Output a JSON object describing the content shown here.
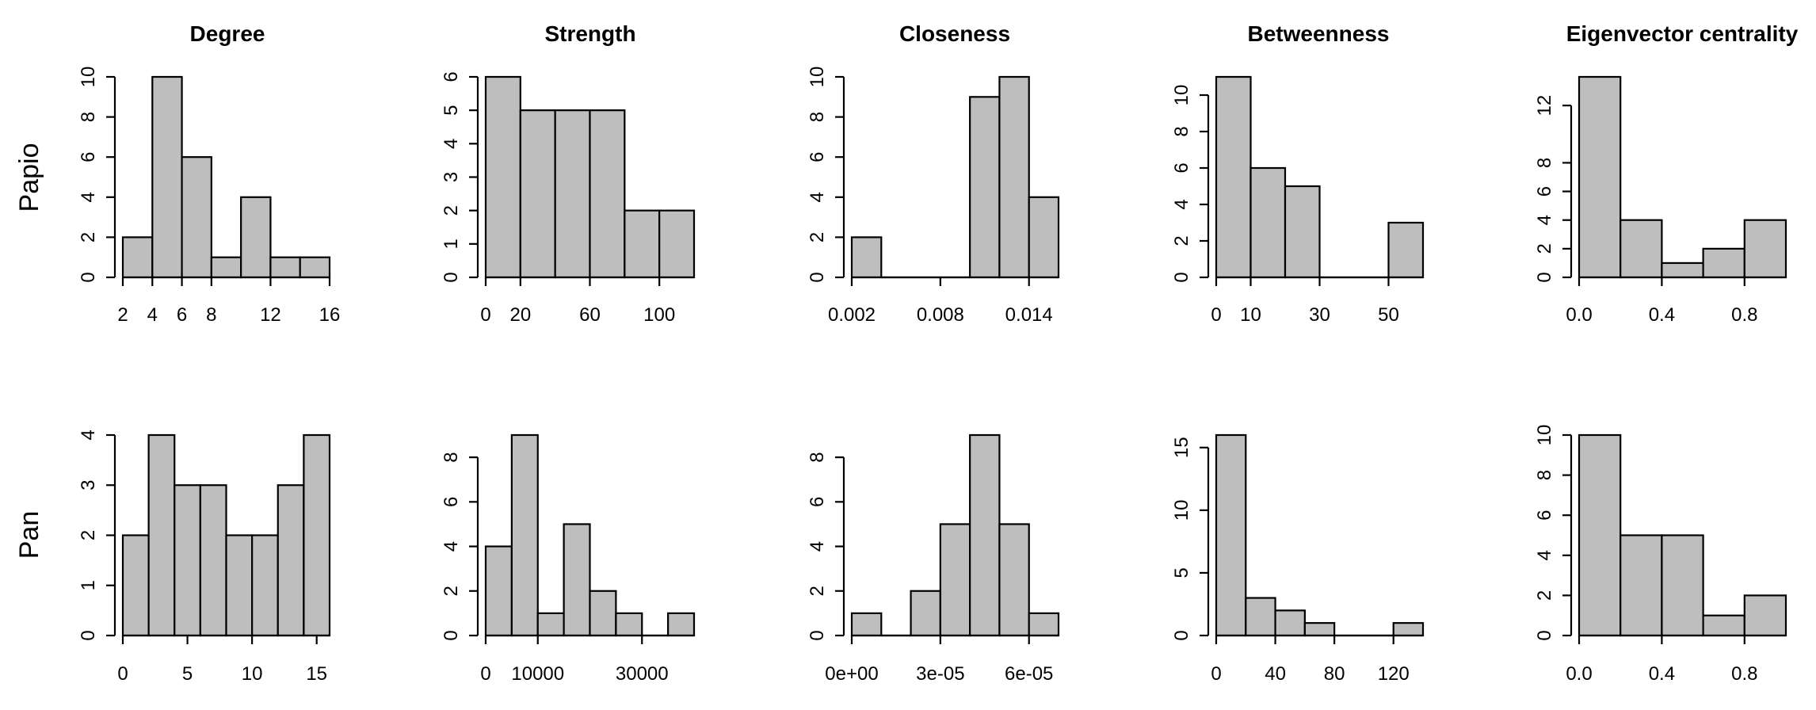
{
  "figure": {
    "column_titles": [
      "Degree",
      "Strength",
      "Closeness",
      "Betweenness",
      "Eigenvector centrality"
    ],
    "row_labels": [
      "Papio",
      "Pan"
    ]
  },
  "style": {
    "bar_fill": "#bebebe",
    "bar_stroke": "#000000",
    "axis_color": "#000000"
  },
  "chart_data": [
    {
      "type": "bar",
      "row": 0,
      "col": 0,
      "title": "Degree",
      "row_label": "Papio",
      "breaks": [
        2,
        4,
        6,
        8,
        10,
        12,
        14,
        16
      ],
      "values": [
        2,
        10,
        6,
        1,
        4,
        1,
        1
      ],
      "xlim": [
        2,
        16
      ],
      "ylim": [
        0,
        10
      ],
      "xticks": [
        2,
        4,
        6,
        8,
        12,
        16
      ],
      "xtick_labels": [
        "2",
        "4",
        "6",
        "8",
        "12",
        "16"
      ],
      "yticks": [
        0,
        2,
        4,
        6,
        8,
        10
      ],
      "ytick_labels": [
        "0",
        "2",
        "4",
        "6",
        "8",
        "10"
      ]
    },
    {
      "type": "bar",
      "row": 0,
      "col": 1,
      "title": "Strength",
      "row_label": "Papio",
      "breaks": [
        0,
        20,
        40,
        60,
        80,
        100,
        120
      ],
      "values": [
        6,
        5,
        5,
        5,
        2,
        2
      ],
      "xlim": [
        0,
        120
      ],
      "ylim": [
        0,
        6
      ],
      "xticks": [
        0,
        20,
        60,
        100
      ],
      "xtick_labels": [
        "0",
        "20",
        "60",
        "100"
      ],
      "yticks": [
        0,
        1,
        2,
        3,
        4,
        5,
        6
      ],
      "ytick_labels": [
        "0",
        "1",
        "2",
        "3",
        "4",
        "5",
        "6"
      ]
    },
    {
      "type": "bar",
      "row": 0,
      "col": 2,
      "title": "Closeness",
      "row_label": "Papio",
      "breaks": [
        0.002,
        0.004,
        0.006,
        0.008,
        0.01,
        0.012,
        0.014,
        0.016
      ],
      "values": [
        2,
        0,
        0,
        0,
        9,
        10,
        4
      ],
      "xlim": [
        0.002,
        0.016
      ],
      "ylim": [
        0,
        10
      ],
      "xticks": [
        0.002,
        0.008,
        0.014
      ],
      "xtick_labels": [
        "0.002",
        "0.008",
        "0.014"
      ],
      "yticks": [
        0,
        2,
        4,
        6,
        8,
        10
      ],
      "ytick_labels": [
        "0",
        "2",
        "4",
        "6",
        "8",
        "10"
      ]
    },
    {
      "type": "bar",
      "row": 0,
      "col": 3,
      "title": "Betweenness",
      "row_label": "Papio",
      "breaks": [
        0,
        10,
        20,
        30,
        40,
        50,
        60
      ],
      "values": [
        11,
        6,
        5,
        0,
        0,
        3
      ],
      "xlim": [
        0,
        60
      ],
      "ylim": [
        0,
        11
      ],
      "xticks": [
        0,
        10,
        30,
        50
      ],
      "xtick_labels": [
        "0",
        "10",
        "30",
        "50"
      ],
      "yticks": [
        0,
        2,
        4,
        6,
        8,
        10
      ],
      "ytick_labels": [
        "0",
        "2",
        "4",
        "6",
        "8",
        "10"
      ]
    },
    {
      "type": "bar",
      "row": 0,
      "col": 4,
      "title": "Eigenvector centrality",
      "row_label": "Papio",
      "breaks": [
        0,
        0.2,
        0.4,
        0.6,
        0.8,
        1.0
      ],
      "values": [
        14,
        4,
        1,
        2,
        4
      ],
      "xlim": [
        0,
        1
      ],
      "ylim": [
        0,
        14
      ],
      "xticks": [
        0,
        0.4,
        0.8
      ],
      "xtick_labels": [
        "0.0",
        "0.4",
        "0.8"
      ],
      "yticks": [
        0,
        2,
        4,
        6,
        8,
        12
      ],
      "ytick_labels": [
        "0",
        "2",
        "4",
        "6",
        "8",
        "12"
      ]
    },
    {
      "type": "bar",
      "row": 1,
      "col": 0,
      "title": "Degree",
      "row_label": "Pan",
      "breaks": [
        0,
        2,
        4,
        6,
        8,
        10,
        12,
        14,
        16
      ],
      "values": [
        2,
        4,
        3,
        3,
        2,
        2,
        3,
        4
      ],
      "xlim": [
        0,
        16
      ],
      "ylim": [
        0,
        4
      ],
      "xticks": [
        0,
        5,
        10,
        15
      ],
      "xtick_labels": [
        "0",
        "5",
        "10",
        "15"
      ],
      "yticks": [
        0,
        1,
        2,
        3,
        4
      ],
      "ytick_labels": [
        "0",
        "1",
        "2",
        "3",
        "4"
      ]
    },
    {
      "type": "bar",
      "row": 1,
      "col": 1,
      "title": "Strength",
      "row_label": "Pan",
      "breaks": [
        0,
        5000,
        10000,
        15000,
        20000,
        25000,
        30000,
        35000,
        40000
      ],
      "values": [
        4,
        9,
        1,
        5,
        2,
        1,
        0,
        1
      ],
      "xlim": [
        0,
        40000
      ],
      "ylim": [
        0,
        9
      ],
      "xticks": [
        0,
        10000,
        30000
      ],
      "xtick_labels": [
        "0",
        "10000",
        "30000"
      ],
      "yticks": [
        0,
        2,
        4,
        6,
        8
      ],
      "ytick_labels": [
        "0",
        "2",
        "4",
        "6",
        "8"
      ]
    },
    {
      "type": "bar",
      "row": 1,
      "col": 2,
      "title": "Closeness",
      "row_label": "Pan",
      "breaks": [
        0,
        1e-05,
        2e-05,
        3e-05,
        4e-05,
        5e-05,
        6e-05,
        7e-05
      ],
      "values": [
        1,
        0,
        2,
        5,
        9,
        5,
        1
      ],
      "xlim": [
        0,
        7e-05
      ],
      "ylim": [
        0,
        9
      ],
      "xticks": [
        0,
        3e-05,
        6e-05
      ],
      "xtick_labels": [
        "0e+00",
        "3e-05",
        "6e-05"
      ],
      "yticks": [
        0,
        2,
        4,
        6,
        8
      ],
      "ytick_labels": [
        "0",
        "2",
        "4",
        "6",
        "8"
      ]
    },
    {
      "type": "bar",
      "row": 1,
      "col": 3,
      "title": "Betweenness",
      "row_label": "Pan",
      "breaks": [
        0,
        20,
        40,
        60,
        80,
        100,
        120,
        140
      ],
      "values": [
        16,
        3,
        2,
        1,
        0,
        0,
        1
      ],
      "xlim": [
        0,
        140
      ],
      "ylim": [
        0,
        16
      ],
      "xticks": [
        0,
        40,
        80,
        120
      ],
      "xtick_labels": [
        "0",
        "40",
        "80",
        "120"
      ],
      "yticks": [
        0,
        5,
        10,
        15
      ],
      "ytick_labels": [
        "0",
        "5",
        "10",
        "15"
      ]
    },
    {
      "type": "bar",
      "row": 1,
      "col": 4,
      "title": "Eigenvector centrality",
      "row_label": "Pan",
      "breaks": [
        0,
        0.2,
        0.4,
        0.6,
        0.8,
        1.0
      ],
      "values": [
        10,
        5,
        5,
        1,
        2
      ],
      "xlim": [
        0,
        1
      ],
      "ylim": [
        0,
        10
      ],
      "xticks": [
        0,
        0.4,
        0.8
      ],
      "xtick_labels": [
        "0.0",
        "0.4",
        "0.8"
      ],
      "yticks": [
        0,
        2,
        4,
        6,
        8,
        10
      ],
      "ytick_labels": [
        "0",
        "2",
        "4",
        "6",
        "8",
        "10"
      ]
    }
  ]
}
